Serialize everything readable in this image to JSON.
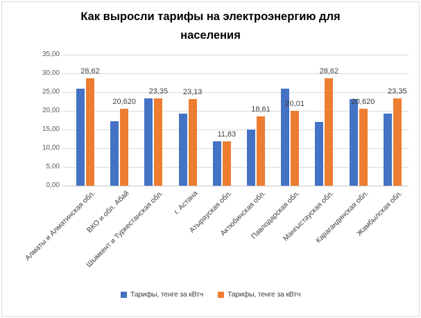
{
  "window": {
    "background": "#ffffff",
    "border_color": "#d9d9d9"
  },
  "chart_data": {
    "type": "bar",
    "title": "Как выросли тарифы на электроэнергию для населения",
    "title_lines": [
      "Как выросли тарифы на электроэнергию для",
      "населения"
    ],
    "categories": [
      "Алматы и Алматинская обл.",
      "ВКО и обл. Абай",
      "Шымкент и Туркестанская обл.",
      "г. Астана",
      "Атырауская обл.",
      "Актюбинская обл.",
      "Павлодарская обл.",
      "Мангыстауская обл.",
      "Карагандинская обл.",
      "Жамбылская обл."
    ],
    "series": [
      {
        "name": "Тарифы, тенге за кВтч",
        "color": "#4472C4",
        "values": [
          25.9,
          17.2,
          23.3,
          19.2,
          11.8,
          15.0,
          25.9,
          17.1,
          23.2,
          19.2
        ],
        "values_estimated": true,
        "data_labels": null
      },
      {
        "name": "Тарифы, тенге за кВтч",
        "color": "#ED7D31",
        "values": [
          28.62,
          20.62,
          23.35,
          23.13,
          11.83,
          18.61,
          20.01,
          28.62,
          20.62,
          23.35
        ],
        "values_estimated": false,
        "data_labels": [
          "28,62",
          "20,620",
          "23,35",
          "23,13",
          "11,83",
          "18,61",
          "20,01",
          "28,62",
          "20,620",
          "23,35"
        ]
      }
    ],
    "xlabel": "",
    "ylabel": "",
    "ylim": [
      0,
      35
    ],
    "ytick_step": 5,
    "ytick_labels": [
      "0,00",
      "5,00",
      "10,00",
      "15,00",
      "20,00",
      "25,00",
      "30,00",
      "35,00"
    ],
    "grid": true,
    "gridline_color": "#d9d9d9",
    "axis_text_color": "#595959",
    "label_text_color": "#3f3f3f",
    "legend_position": "bottom"
  }
}
